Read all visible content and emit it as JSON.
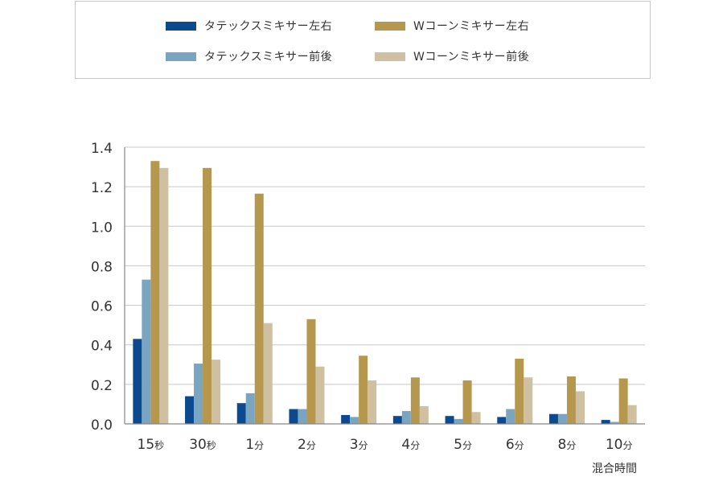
{
  "chart_data": {
    "type": "bar",
    "categories": [
      "15秒",
      "30秒",
      "1分",
      "2分",
      "3分",
      "4分",
      "5分",
      "6分",
      "8分",
      "10分"
    ],
    "series": [
      {
        "name": "タテックスミキサー左右",
        "color": "#0b4a8f",
        "values": [
          0.43,
          0.14,
          0.105,
          0.075,
          0.045,
          0.04,
          0.04,
          0.035,
          0.05,
          0.02
        ]
      },
      {
        "name": "タテックスミキサー前後",
        "color": "#7aa5c0",
        "values": [
          0.73,
          0.305,
          0.155,
          0.075,
          0.035,
          0.065,
          0.025,
          0.075,
          0.05,
          0.01
        ]
      },
      {
        "name": "Wコーンミキサー左右",
        "color": "#b5974d",
        "values": [
          1.33,
          1.295,
          1.165,
          0.53,
          0.345,
          0.235,
          0.22,
          0.33,
          0.24,
          0.23
        ]
      },
      {
        "name": "Wコーンミキサー前後",
        "color": "#cec0a0",
        "values": [
          1.295,
          0.325,
          0.51,
          0.29,
          0.22,
          0.09,
          0.06,
          0.235,
          0.165,
          0.095
        ]
      }
    ],
    "yticks": [
      "0.0",
      "0.2",
      "0.4",
      "0.6",
      "0.8",
      "1.0",
      "1.2",
      "1.4"
    ],
    "ylim": [
      0,
      1.4
    ],
    "xlabel": "混合時間",
    "ylabel": "",
    "grid": true,
    "legend_position": "top"
  }
}
